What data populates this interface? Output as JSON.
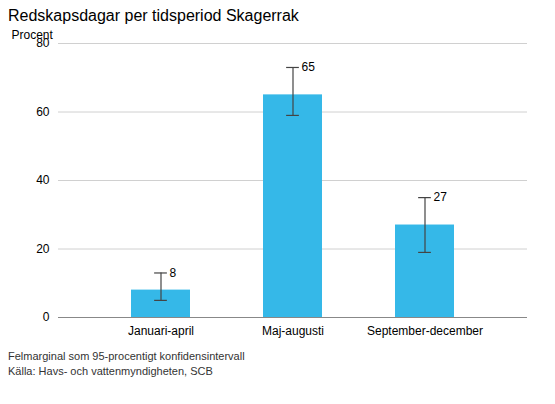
{
  "chart_data": {
    "type": "bar",
    "title": "Redskapsdagar per tidsperiod Skagerrak",
    "categories": [
      "Januari-april",
      "Maj-augusti",
      "September-december"
    ],
    "values": [
      8,
      65,
      27
    ],
    "errors_up": [
      5,
      8,
      8
    ],
    "errors_down": [
      3,
      6,
      8
    ],
    "color": "#35b8e8",
    "ylabel": "Procent",
    "ylim": [
      0,
      80
    ],
    "yticks": [
      0,
      20,
      40,
      60,
      80
    ],
    "grid": true,
    "data_labels": true,
    "footnotes": [
      "Felmarginal som 95-procentigt konfidensintervall",
      "Källa: Havs- och vattenmyndigheten, SCB"
    ]
  }
}
